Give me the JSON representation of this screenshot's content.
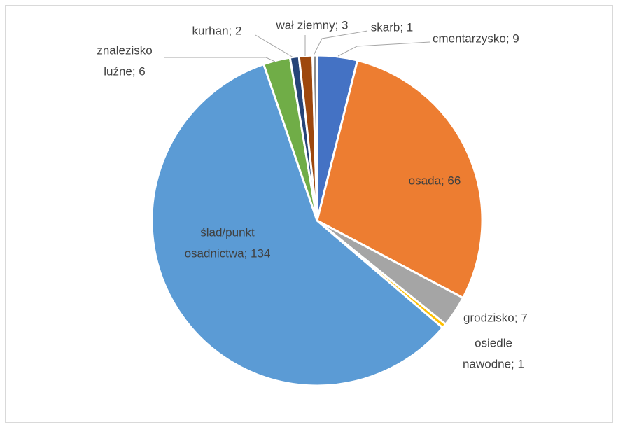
{
  "chart_data": {
    "type": "pie",
    "categories": [
      "cmentarzysko",
      "osada",
      "grodzisko",
      "osiedle nawodne",
      "ślad/punkt osadnictwa",
      "znalezisko luźne",
      "kurhan",
      "wał ziemny",
      "skarb"
    ],
    "values": [
      9,
      66,
      7,
      1,
      134,
      6,
      2,
      3,
      1
    ],
    "value_labels": [
      [
        "cmentarzysko; 9"
      ],
      [
        "osada; 66"
      ],
      [
        "grodzisko; 7"
      ],
      [
        "osiedle",
        "nawodne; 1"
      ],
      [
        "ślad/punkt",
        "osadnictwa; 134"
      ],
      [
        "znalezisko",
        "luźne; 6"
      ],
      [
        "kurhan; 2"
      ],
      [
        "wał ziemny; 3"
      ],
      [
        "skarb; 1"
      ]
    ],
    "colors": [
      "#4472c4",
      "#ed7d31",
      "#a5a5a5",
      "#ffc000",
      "#5b9bd5",
      "#70ad47",
      "#264478",
      "#9e480e",
      "#8c8c8c"
    ]
  }
}
